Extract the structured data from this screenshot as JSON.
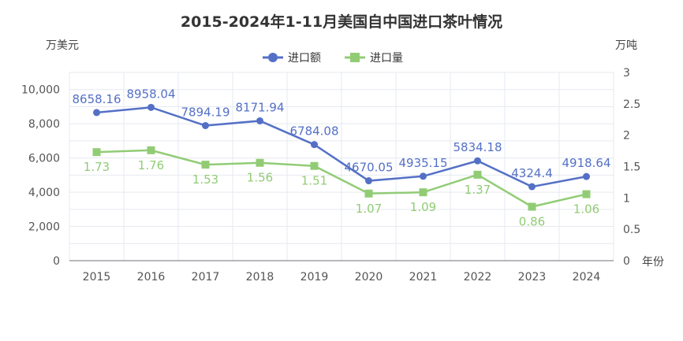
{
  "colors": {
    "import": "#5470c6",
    "volume": "#91cc75",
    "grid": "#e6e9f0",
    "axis": "#6e7079"
  },
  "chart_data": {
    "type": "line",
    "title": "2015-2024年1-11月美国自中国进口茶叶情况",
    "y_left_unit": "万美元",
    "y_right_unit": "万吨",
    "x_unit": "年份",
    "categories": [
      "2015",
      "2016",
      "2017",
      "2018",
      "2019",
      "2020",
      "2021",
      "2022",
      "2023",
      "2024"
    ],
    "y_left_ticks": [
      "0",
      "2,000",
      "4,000",
      "6,000",
      "8,000",
      "10,000"
    ],
    "y_right_ticks": [
      "0",
      "0.5",
      "1",
      "1.5",
      "2",
      "2.5",
      "3"
    ],
    "ylim_left": [
      0,
      11000
    ],
    "ylim_right": [
      0,
      3
    ],
    "grid": true,
    "legend_position": "top-center",
    "series": [
      {
        "name": "进口额",
        "axis": "left",
        "marker": "circle",
        "values": [
          8658.16,
          8958.04,
          7894.19,
          8171.94,
          6784.08,
          4670.05,
          4935.15,
          5834.18,
          4324.4,
          4918.64
        ],
        "labels": [
          "8658.16",
          "8958.04",
          "7894.19",
          "8171.94",
          "6784.08",
          "4670.05",
          "4935.15",
          "5834.18",
          "4324.4",
          "4918.64"
        ]
      },
      {
        "name": "进口量",
        "axis": "right",
        "marker": "square",
        "values": [
          1.73,
          1.76,
          1.53,
          1.56,
          1.51,
          1.07,
          1.09,
          1.37,
          0.86,
          1.06
        ],
        "labels": [
          "1.73",
          "1.76",
          "1.53",
          "1.56",
          "1.51",
          "1.07",
          "1.09",
          "1.37",
          "0.86",
          "1.06"
        ]
      }
    ]
  }
}
